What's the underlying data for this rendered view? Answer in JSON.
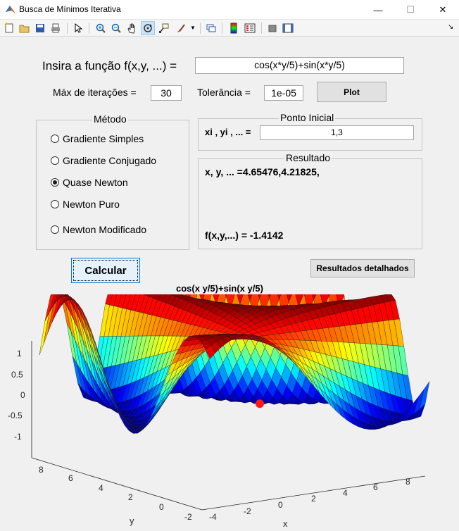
{
  "window": {
    "title": "Busca de Mínimos Iterativa",
    "minimize": "—",
    "maximize": "☐",
    "close": "✕"
  },
  "toolbar": {
    "items": [
      "new-file",
      "open-file",
      "save",
      "print",
      "select-pointer",
      "zoom-in",
      "zoom-out",
      "pan",
      "rotate-3d",
      "data-cursor",
      "brush",
      "insert-colorbar",
      "link-plot",
      "insert-legend",
      "hide-plot-tools",
      "show-plot-tools"
    ],
    "active": "rotate-3d",
    "dock": "↘"
  },
  "form": {
    "function_label": "Insira a função f(x,y, ...) =",
    "function_value": "cos(x*y/5)+sin(x*y/5)",
    "max_iter_label": "Máx de iterações =",
    "max_iter_value": "30",
    "tolerance_label": "Tolerância =",
    "tolerance_value": "1e-05",
    "plot_button": "Plot"
  },
  "method": {
    "title": "Método",
    "options": [
      "Gradiente Simples",
      "Gradiente Conjugado",
      "Quase Newton",
      "Newton Puro",
      "Newton Modificado"
    ],
    "selected_index": 2
  },
  "initial_point": {
    "title": "Ponto Inicial",
    "label": "xi , yi , ... =",
    "value": "1,3"
  },
  "result": {
    "title": "Resultado",
    "point_line": "x, y, ... =4.65476,4.21825,",
    "value_line": "f(x,y,...) = -1.4142"
  },
  "actions": {
    "calculate": "Calcular",
    "detailed": "Resultados detalhados"
  },
  "plot": {
    "title": "cos(x  y/5)+sin(x  y/5)",
    "z_ticks": [
      "1",
      "0.5",
      "0",
      "-0.5",
      "-1"
    ],
    "y_ticks": [
      "8",
      "6",
      "4",
      "2",
      "0",
      "-2"
    ],
    "x_ticks": [
      "-4",
      "-2",
      "0",
      "2",
      "4",
      "6",
      "8"
    ],
    "x_label": "x",
    "y_label": "y",
    "colors": {
      "low": "#0a1a8f",
      "mid": "#2dd6c4",
      "high": "#f01a0a",
      "marker": "#ff1a1a"
    }
  }
}
